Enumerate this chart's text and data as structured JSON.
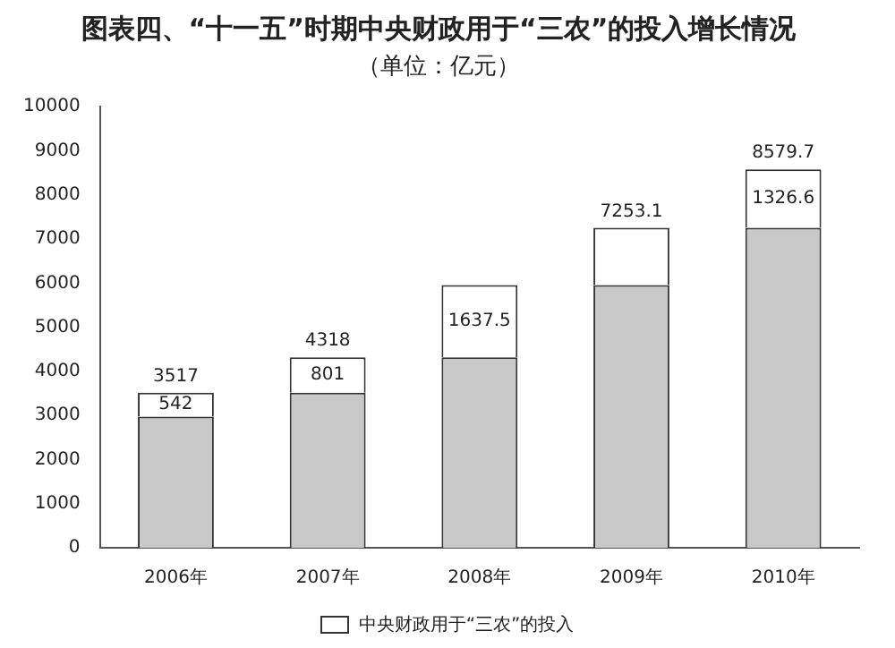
{
  "chart_data": {
    "type": "bar",
    "title": "图表四、“十一五”时期中央财政用于“三农”的投入增长情况",
    "subtitle": "（单位：亿元）",
    "categories": [
      "2006年",
      "2007年",
      "2008年",
      "2009年",
      "2010年"
    ],
    "stacked": true,
    "series": [
      {
        "color": "#c8c8c8",
        "values": [
          2975,
          3517,
          4318,
          5955.5,
          7253.1
        ]
      },
      {
        "name": "中央财政用于“三农”的投入",
        "color": "#ffffff",
        "values": [
          542,
          801,
          1637.5,
          1297.6,
          1326.6
        ],
        "value_labels": [
          "542",
          "801",
          "1637.5",
          null,
          "1326.6"
        ]
      }
    ],
    "totals": [
      "3517",
      "4318",
      null,
      "7253.1",
      "8579.7"
    ],
    "ylim": [
      0,
      10000
    ],
    "yticks": [
      0,
      1000,
      2000,
      3000,
      4000,
      5000,
      6000,
      7000,
      8000,
      9000,
      10000
    ],
    "grid": false,
    "legend": "bottom"
  }
}
